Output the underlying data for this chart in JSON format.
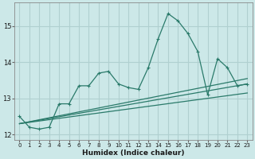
{
  "title": "",
  "xlabel": "Humidex (Indice chaleur)",
  "bg_color": "#cce8e8",
  "grid_color": "#b0d0d0",
  "line_color": "#2a7a6a",
  "x_values": [
    0,
    1,
    2,
    3,
    4,
    5,
    6,
    7,
    8,
    9,
    10,
    11,
    12,
    13,
    14,
    15,
    16,
    17,
    18,
    19,
    20,
    21,
    22,
    23
  ],
  "line1": [
    12.5,
    12.2,
    12.15,
    12.2,
    12.85,
    12.85,
    13.35,
    13.35,
    13.7,
    13.75,
    13.4,
    13.3,
    13.25,
    13.85,
    14.65,
    15.35,
    15.15,
    14.8,
    14.3,
    13.1,
    14.1,
    13.85,
    13.35,
    13.4
  ],
  "trend1": [
    12.3,
    13.55
  ],
  "trend2": [
    12.3,
    13.4
  ],
  "trend3": [
    12.3,
    13.15
  ],
  "ylim": [
    11.85,
    15.65
  ],
  "xlim": [
    -0.5,
    23.5
  ],
  "yticks": [
    12,
    13,
    14,
    15
  ],
  "xticks": [
    0,
    1,
    2,
    3,
    4,
    5,
    6,
    7,
    8,
    9,
    10,
    11,
    12,
    13,
    14,
    15,
    16,
    17,
    18,
    19,
    20,
    21,
    22,
    23
  ]
}
